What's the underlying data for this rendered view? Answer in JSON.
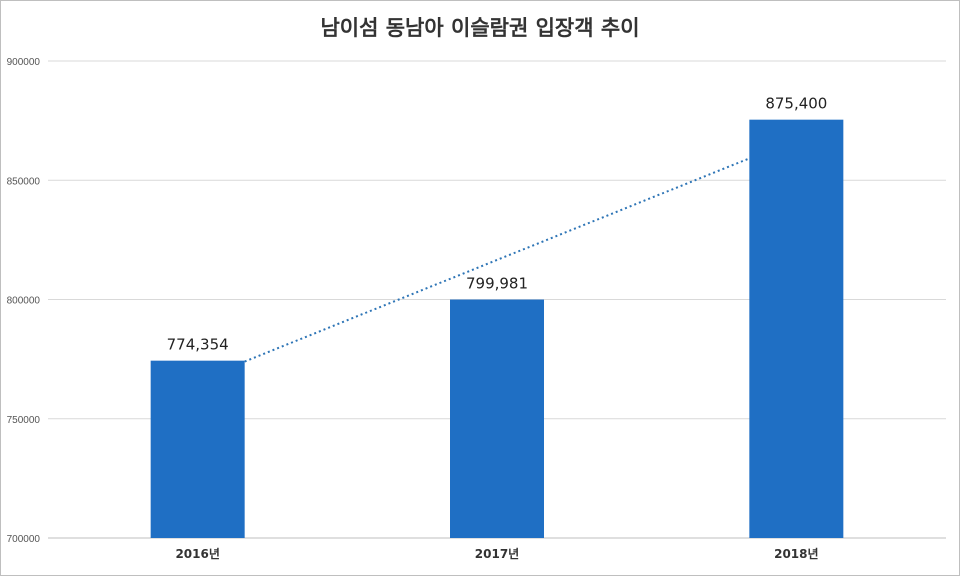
{
  "chart_data": {
    "type": "bar",
    "title": "남이섬 동남아 이슬람권 입장객 추이",
    "categories": [
      "2016년",
      "2017년",
      "2018년"
    ],
    "values": [
      774354,
      799981,
      875400
    ],
    "data_labels": [
      "774,354",
      "799,981",
      "875,400"
    ],
    "ylim": [
      700000,
      900000
    ],
    "y_ticks": [
      700000,
      750000,
      800000,
      850000,
      900000
    ],
    "y_tick_labels": [
      "700000",
      "750000",
      "800000",
      "850000",
      "900000"
    ],
    "grid": true,
    "trendline": {
      "style": "dotted",
      "type": "linear"
    },
    "bar_color": "#1f6fc4",
    "trend_color": "#2e75b6"
  }
}
